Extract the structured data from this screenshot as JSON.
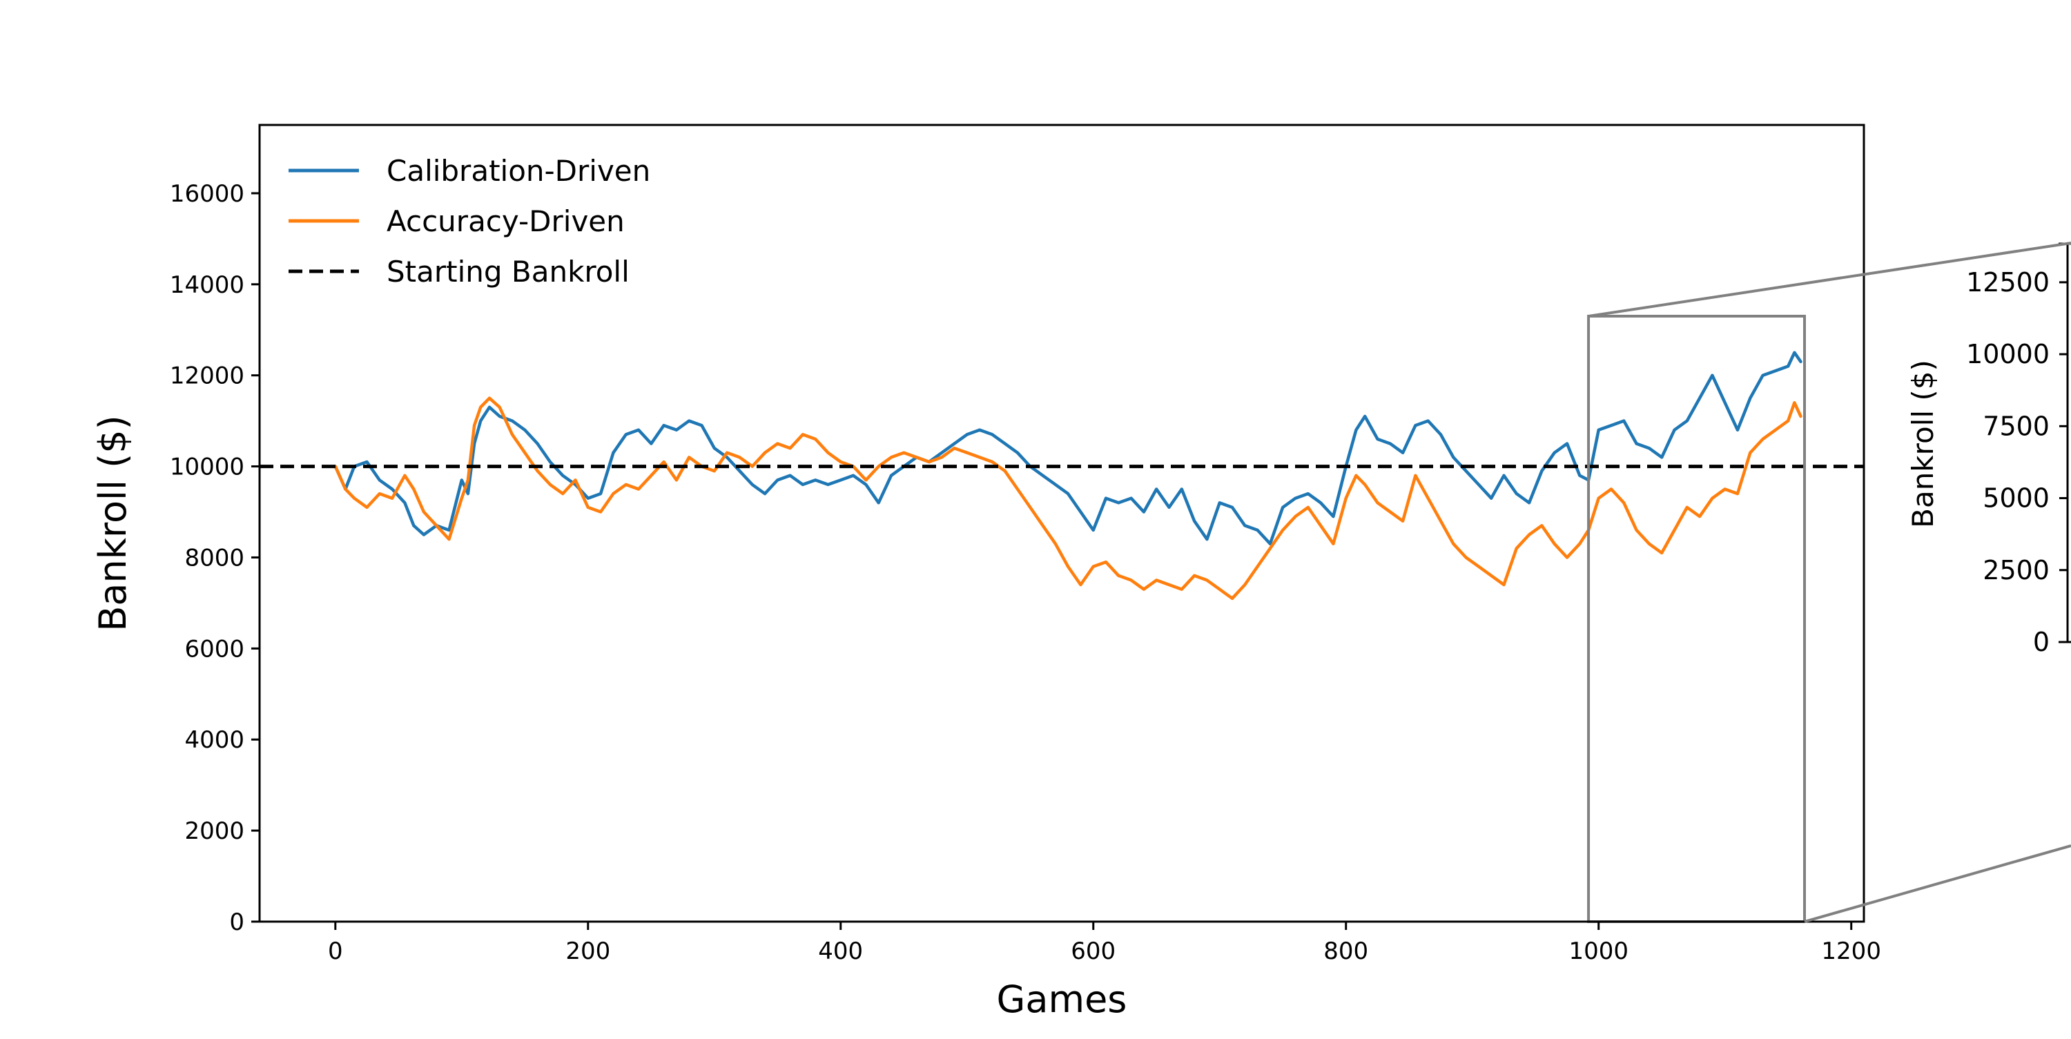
{
  "chart_data": {
    "type": "line",
    "xlabel": "Games",
    "ylabel": "Bankroll ($)",
    "xlim": [
      -60,
      1210
    ],
    "ylim": [
      0,
      17500
    ],
    "xticks": [
      0,
      200,
      400,
      600,
      800,
      1000,
      1200
    ],
    "yticks": [
      0,
      2000,
      4000,
      6000,
      8000,
      10000,
      12000,
      14000,
      16000
    ],
    "legend_position": "top-left",
    "grid": false,
    "legend": [
      "Calibration-Driven",
      "Accuracy-Driven",
      "Starting Bankroll"
    ],
    "colors": {
      "calibration": "#1f77b4",
      "accuracy": "#ff7f0e",
      "baseline": "#000000",
      "zoom": "#808080"
    },
    "baseline_value": 10000,
    "series": [
      {
        "name": "Calibration-Driven",
        "x": [
          0,
          8,
          15,
          25,
          35,
          45,
          55,
          62,
          70,
          80,
          90,
          100,
          105,
          110,
          115,
          122,
          130,
          140,
          150,
          160,
          170,
          180,
          190,
          200,
          210,
          220,
          230,
          240,
          250,
          260,
          270,
          280,
          290,
          300,
          310,
          320,
          330,
          340,
          350,
          360,
          370,
          380,
          390,
          400,
          410,
          420,
          430,
          440,
          450,
          460,
          470,
          480,
          490,
          500,
          510,
          520,
          530,
          540,
          550,
          560,
          570,
          580,
          590,
          600,
          610,
          620,
          630,
          640,
          650,
          660,
          670,
          680,
          690,
          700,
          710,
          720,
          730,
          740,
          750,
          760,
          770,
          780,
          790,
          800,
          808,
          815,
          825,
          835,
          845,
          855,
          865,
          875,
          885,
          895,
          905,
          915,
          925,
          935,
          945,
          955,
          965,
          975,
          985,
          992,
          1000,
          1010,
          1020,
          1030,
          1040,
          1050,
          1060,
          1070,
          1080,
          1090,
          1100,
          1110,
          1120,
          1130,
          1140,
          1150,
          1155,
          1160
        ],
        "y": [
          10000,
          9500,
          10000,
          10100,
          9700,
          9500,
          9200,
          8700,
          8500,
          8700,
          8600,
          9700,
          9400,
          10500,
          11000,
          11300,
          11100,
          11000,
          10800,
          10500,
          10100,
          9800,
          9600,
          9300,
          9400,
          10300,
          10700,
          10800,
          10500,
          10900,
          10800,
          11000,
          10900,
          10400,
          10200,
          9900,
          9600,
          9400,
          9700,
          9800,
          9600,
          9700,
          9600,
          9700,
          9800,
          9600,
          9200,
          9800,
          10000,
          10200,
          10100,
          10300,
          10500,
          10700,
          10800,
          10700,
          10500,
          10300,
          10000,
          9800,
          9600,
          9400,
          9000,
          8600,
          9300,
          9200,
          9300,
          9000,
          9500,
          9100,
          9500,
          8800,
          8400,
          9200,
          9100,
          8700,
          8600,
          8300,
          9100,
          9300,
          9400,
          9200,
          8900,
          10000,
          10800,
          11100,
          10600,
          10500,
          10300,
          10900,
          11000,
          10700,
          10200,
          9900,
          9600,
          9300,
          9800,
          9400,
          9200,
          9900,
          10300,
          10500,
          9800,
          9700,
          10800,
          10900,
          11000,
          10500,
          10400,
          10200,
          10800,
          11000,
          11500,
          12000,
          11400,
          10800,
          11500,
          12000,
          12100,
          12200,
          12500,
          12300
        ]
      },
      {
        "name": "Accuracy-Driven",
        "x": [
          0,
          8,
          15,
          25,
          35,
          45,
          55,
          62,
          70,
          80,
          90,
          100,
          105,
          110,
          115,
          122,
          130,
          140,
          150,
          160,
          170,
          180,
          190,
          200,
          210,
          220,
          230,
          240,
          250,
          260,
          270,
          280,
          290,
          300,
          310,
          320,
          330,
          340,
          350,
          360,
          370,
          380,
          390,
          400,
          410,
          420,
          430,
          440,
          450,
          460,
          470,
          480,
          490,
          500,
          510,
          520,
          530,
          540,
          550,
          560,
          570,
          580,
          590,
          600,
          610,
          620,
          630,
          640,
          650,
          660,
          670,
          680,
          690,
          700,
          710,
          720,
          730,
          740,
          750,
          760,
          770,
          780,
          790,
          800,
          808,
          815,
          825,
          835,
          845,
          855,
          865,
          875,
          885,
          895,
          905,
          915,
          925,
          935,
          945,
          955,
          965,
          975,
          985,
          992,
          1000,
          1010,
          1020,
          1030,
          1040,
          1050,
          1060,
          1070,
          1080,
          1090,
          1100,
          1110,
          1120,
          1130,
          1140,
          1150,
          1155,
          1160
        ],
        "y": [
          10000,
          9500,
          9300,
          9100,
          9400,
          9300,
          9800,
          9500,
          9000,
          8700,
          8400,
          9300,
          9700,
          10900,
          11300,
          11500,
          11300,
          10700,
          10300,
          9900,
          9600,
          9400,
          9700,
          9100,
          9000,
          9400,
          9600,
          9500,
          9800,
          10100,
          9700,
          10200,
          10000,
          9900,
          10300,
          10200,
          10000,
          10300,
          10500,
          10400,
          10700,
          10600,
          10300,
          10100,
          10000,
          9700,
          10000,
          10200,
          10300,
          10200,
          10100,
          10200,
          10400,
          10300,
          10200,
          10100,
          9900,
          9500,
          9100,
          8700,
          8300,
          7800,
          7400,
          7800,
          7900,
          7600,
          7500,
          7300,
          7500,
          7400,
          7300,
          7600,
          7500,
          7300,
          7100,
          7400,
          7800,
          8200,
          8600,
          8900,
          9100,
          8700,
          8300,
          9300,
          9800,
          9600,
          9200,
          9000,
          8800,
          9800,
          9300,
          8800,
          8300,
          8000,
          7800,
          7600,
          7400,
          8200,
          8500,
          8700,
          8300,
          8000,
          8300,
          8600,
          9300,
          9500,
          9200,
          8600,
          8300,
          8100,
          8600,
          9100,
          8900,
          9300,
          9500,
          9400,
          10300,
          10600,
          10800,
          11000,
          11400,
          11100
        ]
      }
    ],
    "zoom_box": {
      "x_range": [
        992,
        1163
      ],
      "y_range": [
        0,
        13300
      ]
    },
    "inset": {
      "ylabel": "Bankroll ($)",
      "ylim": [
        0,
        13000
      ],
      "yticks": [
        0,
        2500,
        5000,
        7500,
        10000,
        12500
      ]
    }
  }
}
